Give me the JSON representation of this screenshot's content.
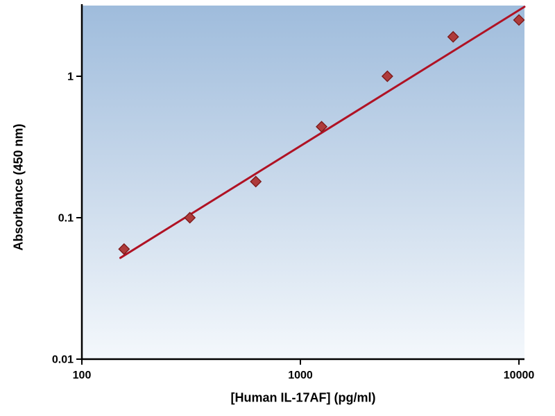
{
  "chart_data": {
    "type": "scatter",
    "xlabel": "[Human IL-17AF] (pg/ml)",
    "ylabel": "Absorbance (450 nm)",
    "x_scale": "log",
    "y_scale": "log",
    "xlim": [
      100,
      10600
    ],
    "ylim": [
      0.01,
      3.162
    ],
    "grid": "off",
    "legend": "none",
    "x_ticks": [
      {
        "value": 100,
        "label": "100"
      },
      {
        "value": 1000,
        "label": "1000"
      },
      {
        "value": 10000,
        "label": "10000"
      }
    ],
    "y_ticks": [
      {
        "value": 0.01,
        "label": "0.01"
      },
      {
        "value": 0.1,
        "label": "0.1"
      },
      {
        "value": 1,
        "label": "1"
      }
    ],
    "points": {
      "x": [
        156,
        312,
        625,
        1250,
        2500,
        5000,
        10000
      ],
      "y": [
        0.06,
        0.1,
        0.18,
        0.44,
        1.0,
        1.9,
        2.5
      ]
    },
    "trendline": {
      "x1": 150,
      "y1": 0.052,
      "x2": 10600,
      "y2": 3.1
    },
    "style": {
      "line_color": "#B01224",
      "marker_fill": "#AE3B3B",
      "marker_stroke": "#7E1A1A",
      "axis_color": "#000000",
      "text_color": "#000000",
      "plot_gradient_top": "#9FBCDC",
      "plot_gradient_mid": "#C9D9EB",
      "plot_gradient_bottom": "#F4F8FC"
    }
  }
}
